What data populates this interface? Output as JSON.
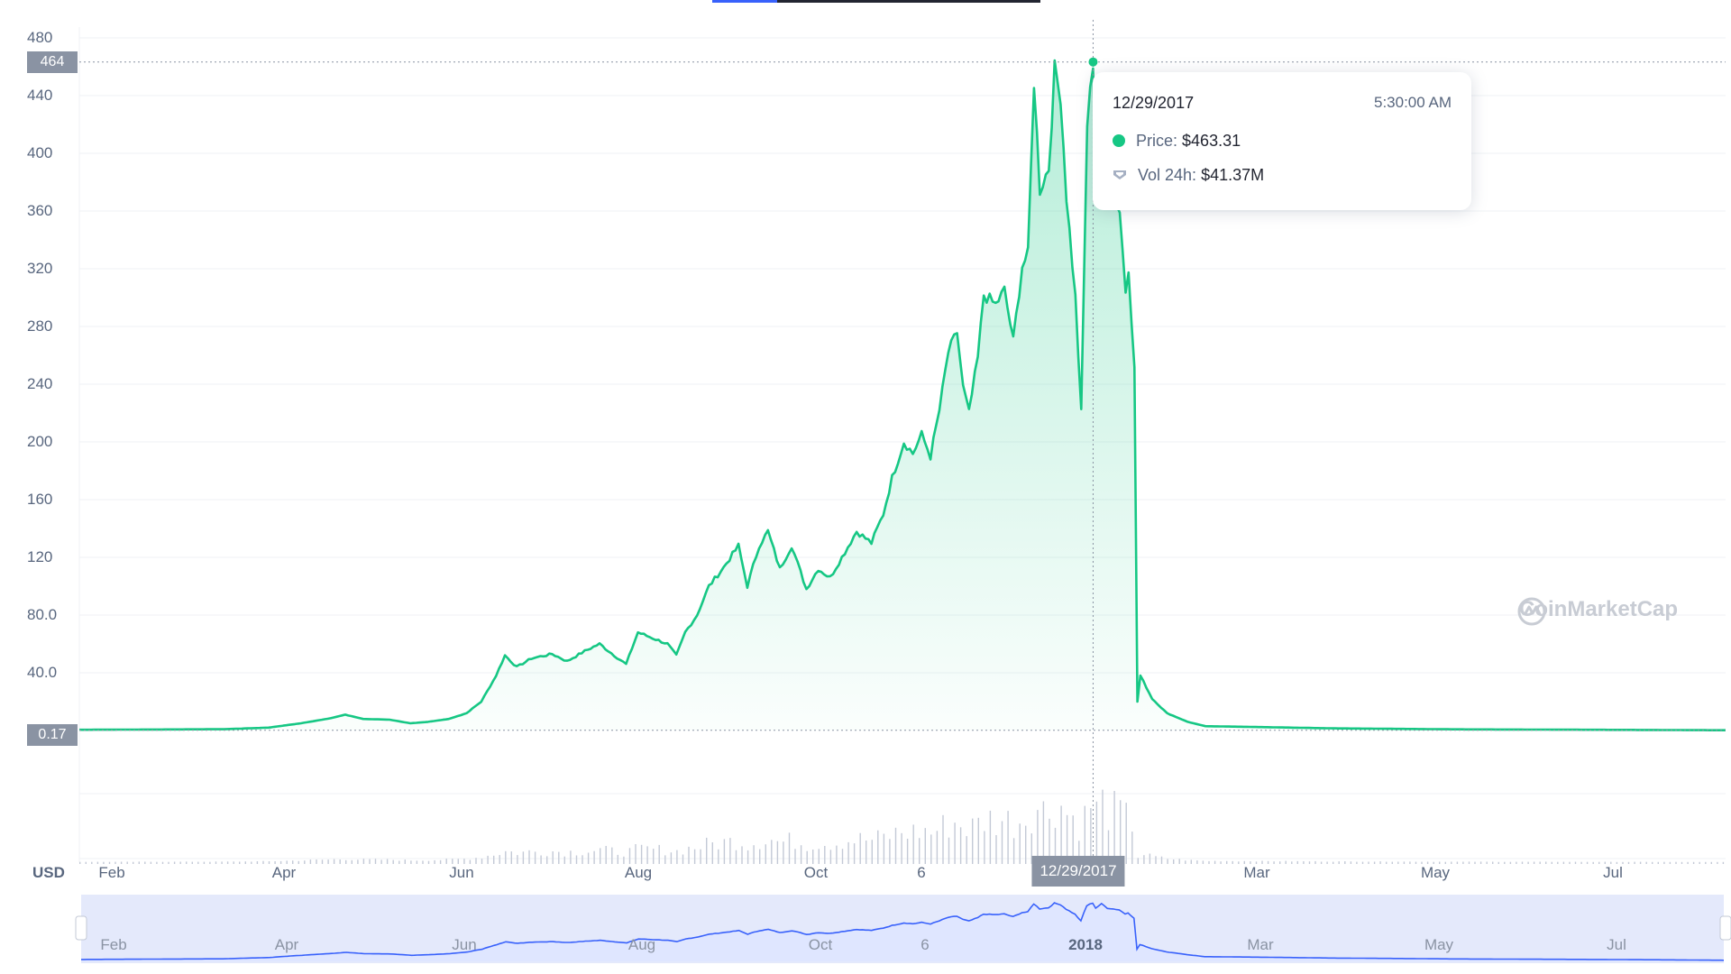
{
  "colors": {
    "price_line": "#16c784",
    "area_top": "#16c784",
    "volume_bar": "#c3c9d6",
    "navigator_line": "#3861fb",
    "navigator_fill": "#dfe6ff",
    "badge": "#8a93a3",
    "tab_active": "#3861fb",
    "tab_inactive": "#222531"
  },
  "currency_label": "USD",
  "watermark": "CoinMarketCap",
  "y_axis": {
    "ticks": [
      "480",
      "440",
      "400",
      "360",
      "320",
      "280",
      "240",
      "200",
      "160",
      "120",
      "80.0",
      "40.0"
    ],
    "hover_badge": "464",
    "last_badge": "0.17"
  },
  "x_axis": {
    "labels": [
      "Feb",
      "Apr",
      "Jun",
      "Aug",
      "Oct",
      "6",
      "Mar",
      "May",
      "Jul"
    ],
    "hover_badge": "12/29/2017"
  },
  "navigator": {
    "labels": [
      "Feb",
      "Apr",
      "Jun",
      "Aug",
      "Oct",
      "6",
      "2018",
      "Mar",
      "May",
      "Jul"
    ]
  },
  "tooltip": {
    "date": "12/29/2017",
    "time": "5:30:00 AM",
    "price_label": "Price:",
    "price_value": "$463.31",
    "volume_label": "Vol 24h:",
    "volume_value": "$41.37M"
  },
  "chart_data": {
    "type": "area",
    "ylim": [
      0,
      480
    ],
    "hover": {
      "date": "2017-12-29",
      "price": 463.31,
      "volume_24h": "$41.37M"
    },
    "series": [
      {
        "points": [
          [
            "2017-01-20",
            0.5
          ],
          [
            "2017-02-15",
            0.7
          ],
          [
            "2017-03-10",
            0.9
          ],
          [
            "2017-03-25",
            2.0
          ],
          [
            "2017-04-05",
            5.0
          ],
          [
            "2017-04-15",
            8.5
          ],
          [
            "2017-04-20",
            11.0
          ],
          [
            "2017-04-26",
            8.0
          ],
          [
            "2017-05-05",
            7.5
          ],
          [
            "2017-05-12",
            5.0
          ],
          [
            "2017-05-18",
            6.0
          ],
          [
            "2017-05-25",
            8.0
          ],
          [
            "2017-05-31",
            12.0
          ],
          [
            "2017-06-05",
            20.0
          ],
          [
            "2017-06-10",
            38.0
          ],
          [
            "2017-06-13",
            52.0
          ],
          [
            "2017-06-17",
            44.0
          ],
          [
            "2017-06-22",
            50.0
          ],
          [
            "2017-06-29",
            53.0
          ],
          [
            "2017-07-04",
            48.0
          ],
          [
            "2017-07-10",
            55.0
          ],
          [
            "2017-07-15",
            60.0
          ],
          [
            "2017-07-20",
            52.0
          ],
          [
            "2017-07-24",
            46.0
          ],
          [
            "2017-07-28",
            68.0
          ],
          [
            "2017-08-02",
            64.0
          ],
          [
            "2017-08-07",
            60.0
          ],
          [
            "2017-08-10",
            52.0
          ],
          [
            "2017-08-13",
            68.0
          ],
          [
            "2017-08-17",
            80.0
          ],
          [
            "2017-08-21",
            100.0
          ],
          [
            "2017-08-26",
            113.0
          ],
          [
            "2017-08-31",
            128.0
          ],
          [
            "2017-09-03",
            100.0
          ],
          [
            "2017-09-07",
            128.0
          ],
          [
            "2017-09-10",
            138.0
          ],
          [
            "2017-09-14",
            112.0
          ],
          [
            "2017-09-18",
            128.0
          ],
          [
            "2017-09-23",
            98.0
          ],
          [
            "2017-09-27",
            112.0
          ],
          [
            "2017-10-01",
            106.0
          ],
          [
            "2017-10-05",
            120.0
          ],
          [
            "2017-10-10",
            138.0
          ],
          [
            "2017-10-15",
            130.0
          ],
          [
            "2017-10-19",
            150.0
          ],
          [
            "2017-10-22",
            175.0
          ],
          [
            "2017-10-26",
            200.0
          ],
          [
            "2017-10-29",
            192.0
          ],
          [
            "2017-11-01",
            205.0
          ],
          [
            "2017-11-04",
            190.0
          ],
          [
            "2017-11-07",
            222.0
          ],
          [
            "2017-11-10",
            262.0
          ],
          [
            "2017-11-13",
            276.0
          ],
          [
            "2017-11-15",
            238.0
          ],
          [
            "2017-11-17",
            220.0
          ],
          [
            "2017-11-20",
            258.0
          ],
          [
            "2017-11-22",
            302.0
          ],
          [
            "2017-11-26",
            295.0
          ],
          [
            "2017-11-29",
            305.0
          ],
          [
            "2017-12-02",
            270.0
          ],
          [
            "2017-12-05",
            322.0
          ],
          [
            "2017-12-07",
            330.0
          ],
          [
            "2017-12-09",
            450.0
          ],
          [
            "2017-12-11",
            375.0
          ],
          [
            "2017-12-14",
            390.0
          ],
          [
            "2017-12-16",
            458.0
          ],
          [
            "2017-12-18",
            440.0
          ],
          [
            "2017-12-20",
            370.0
          ],
          [
            "2017-12-23",
            300.0
          ],
          [
            "2017-12-25",
            220.0
          ],
          [
            "2017-12-27",
            420.0
          ],
          [
            "2017-12-29",
            463.31
          ],
          [
            "2017-12-30",
            385.0
          ],
          [
            "2018-01-01",
            448.0
          ],
          [
            "2018-01-03",
            385.0
          ],
          [
            "2018-01-07",
            360.0
          ],
          [
            "2018-01-09",
            305.0
          ],
          [
            "2018-01-10",
            322.0
          ],
          [
            "2018-01-12",
            250.0
          ],
          [
            "2018-01-13",
            20.0
          ],
          [
            "2018-01-14",
            38.0
          ],
          [
            "2018-01-18",
            22.0
          ],
          [
            "2018-01-23",
            12.0
          ],
          [
            "2018-01-30",
            6.0
          ],
          [
            "2018-02-05",
            3.0
          ],
          [
            "2018-02-20",
            2.5
          ],
          [
            "2018-03-20",
            1.5
          ],
          [
            "2018-05-01",
            0.8
          ],
          [
            "2018-06-01",
            0.6
          ],
          [
            "2018-07-01",
            0.4
          ],
          [
            "2018-07-31",
            0.17
          ]
        ]
      }
    ]
  }
}
